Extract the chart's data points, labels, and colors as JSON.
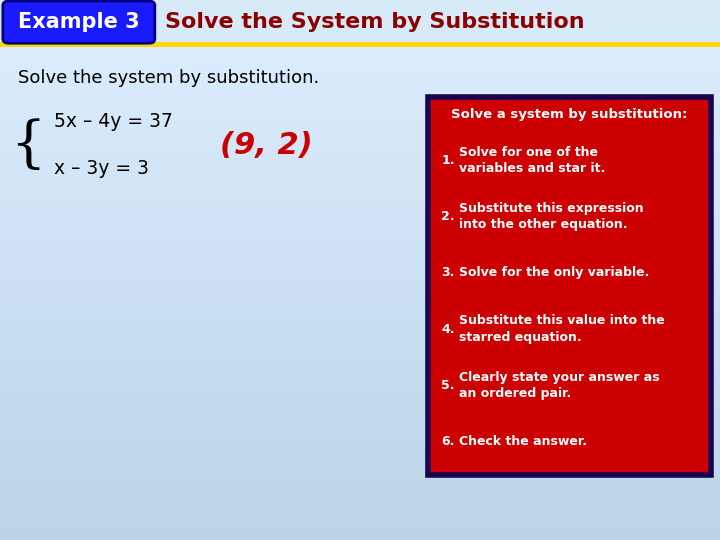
{
  "title_box_text": "Example 3",
  "title_box_bg": "#1a1aff",
  "title_box_border": "#4040c0",
  "header_text": "Solve the System by Substitution",
  "header_color": "#8b0000",
  "underline_color": "#FFD700",
  "subtitle": "Solve the system by substitution.",
  "subtitle_color": "#000000",
  "eq1": "5x – 4y = 37",
  "eq2": "x – 3y = 3",
  "answer": "(9, 2)",
  "answer_color": "#cc0000",
  "red_box_bg": "#cc0000",
  "red_box_border": "#1a0050",
  "red_box_title": "Solve a system by substitution:",
  "red_box_title_color": "#ffffff",
  "steps": [
    "Solve for one of the\nvariables and star it.",
    "Substitute this expression\ninto the other equation.",
    "Solve for the only variable.",
    "Substitute this value into the\nstarred equation.",
    "Clearly state your answer as\nan ordered pair.",
    "Check the answer."
  ],
  "steps_color": "#ffffff",
  "fig_width": 7.2,
  "fig_height": 5.4,
  "dpi": 100
}
